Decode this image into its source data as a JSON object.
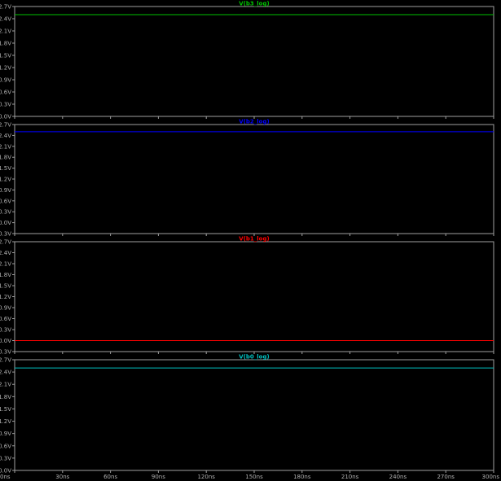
{
  "chart_data": [
    {
      "type": "line",
      "title": "V(b3_log)",
      "color": "#00c000",
      "xlim": [
        0,
        300
      ],
      "ylim": [
        0.0,
        2.7
      ],
      "yticks": [
        "0.0V",
        "0.3V",
        "0.6V",
        "0.9V",
        "1.2V",
        "1.5V",
        "1.8V",
        "2.1V",
        "2.4V",
        "2.7V"
      ],
      "series": [
        {
          "name": "V(b3_log)",
          "x": [
            0,
            300
          ],
          "values": [
            2.5,
            2.5
          ]
        }
      ]
    },
    {
      "type": "line",
      "title": "V(b2_log)",
      "color": "#0000ff",
      "xlim": [
        0,
        300
      ],
      "ylim": [
        -0.3,
        2.7
      ],
      "yticks": [
        "-0.3V",
        "0.0V",
        "0.3V",
        "0.6V",
        "0.9V",
        "1.2V",
        "1.5V",
        "1.8V",
        "2.1V",
        "2.4V",
        "2.7V"
      ],
      "series": [
        {
          "name": "V(b2_log)",
          "x": [
            0,
            300
          ],
          "values": [
            2.5,
            2.5
          ]
        }
      ]
    },
    {
      "type": "line",
      "title": "V(b1_log)",
      "color": "#ff0000",
      "xlim": [
        0,
        300
      ],
      "ylim": [
        -0.3,
        2.7
      ],
      "yticks": [
        "-0.3V",
        "0.0V",
        "0.3V",
        "0.6V",
        "0.9V",
        "1.2V",
        "1.5V",
        "1.8V",
        "2.1V",
        "2.4V",
        "2.7V"
      ],
      "series": [
        {
          "name": "V(b1_log)",
          "x": [
            0,
            300
          ],
          "values": [
            0.0,
            0.0
          ]
        }
      ]
    },
    {
      "type": "line",
      "title": "V(b0_log)",
      "color": "#00c0c0",
      "xlim": [
        0,
        300
      ],
      "ylim": [
        0.0,
        2.7
      ],
      "yticks": [
        "0.0V",
        "0.3V",
        "0.6V",
        "0.9V",
        "1.2V",
        "1.5V",
        "1.8V",
        "2.1V",
        "2.4V",
        "2.7V"
      ],
      "series": [
        {
          "name": "V(b0_log)",
          "x": [
            0,
            300
          ],
          "values": [
            2.5,
            2.5
          ]
        }
      ]
    }
  ],
  "x_axis": {
    "ticks": [
      "0ns",
      "30ns",
      "60ns",
      "90ns",
      "120ns",
      "150ns",
      "180ns",
      "210ns",
      "240ns",
      "270ns",
      "300ns"
    ]
  },
  "colors": {
    "background": "#000000",
    "frame": "#a0a0a0",
    "tick_label": "#b0b0b0"
  }
}
